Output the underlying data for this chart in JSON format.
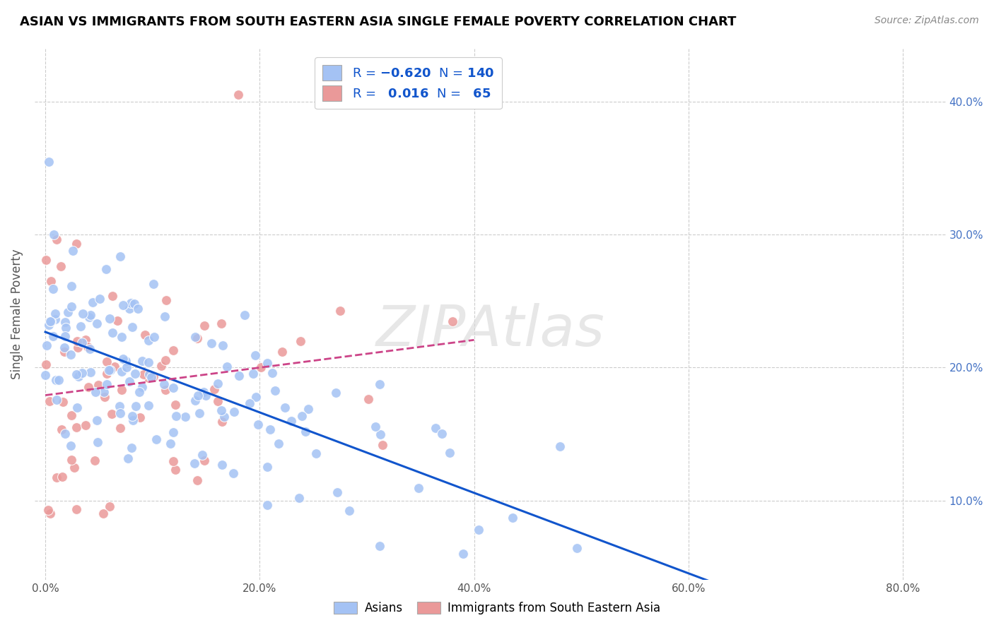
{
  "title": "ASIAN VS IMMIGRANTS FROM SOUTH EASTERN ASIA SINGLE FEMALE POVERTY CORRELATION CHART",
  "source": "Source: ZipAtlas.com",
  "xlabel_ticks": [
    "0.0%",
    "20.0%",
    "40.0%",
    "60.0%",
    "80.0%"
  ],
  "xlabel_tick_vals": [
    0.0,
    0.2,
    0.4,
    0.6,
    0.8
  ],
  "ylabel_ticks": [
    "10.0%",
    "20.0%",
    "30.0%",
    "40.0%"
  ],
  "ylabel_tick_vals": [
    0.1,
    0.2,
    0.3,
    0.4
  ],
  "ylabel": "Single Female Poverty",
  "xlim": [
    -0.01,
    0.84
  ],
  "ylim": [
    0.04,
    0.44
  ],
  "blue_R": -0.62,
  "blue_N": 140,
  "pink_R": 0.016,
  "pink_N": 65,
  "blue_color": "#a4c2f4",
  "pink_color": "#ea9999",
  "blue_line_color": "#1155cc",
  "pink_line_color": "#cc4488",
  "watermark": "ZIPAtlas",
  "watermark_color": "#d8d8d8",
  "background_color": "#ffffff",
  "grid_color": "#cccccc",
  "title_color": "#000000",
  "axis_label_color": "#555555",
  "right_tick_color": "#4472c4",
  "legend_text_color": "#1155cc"
}
